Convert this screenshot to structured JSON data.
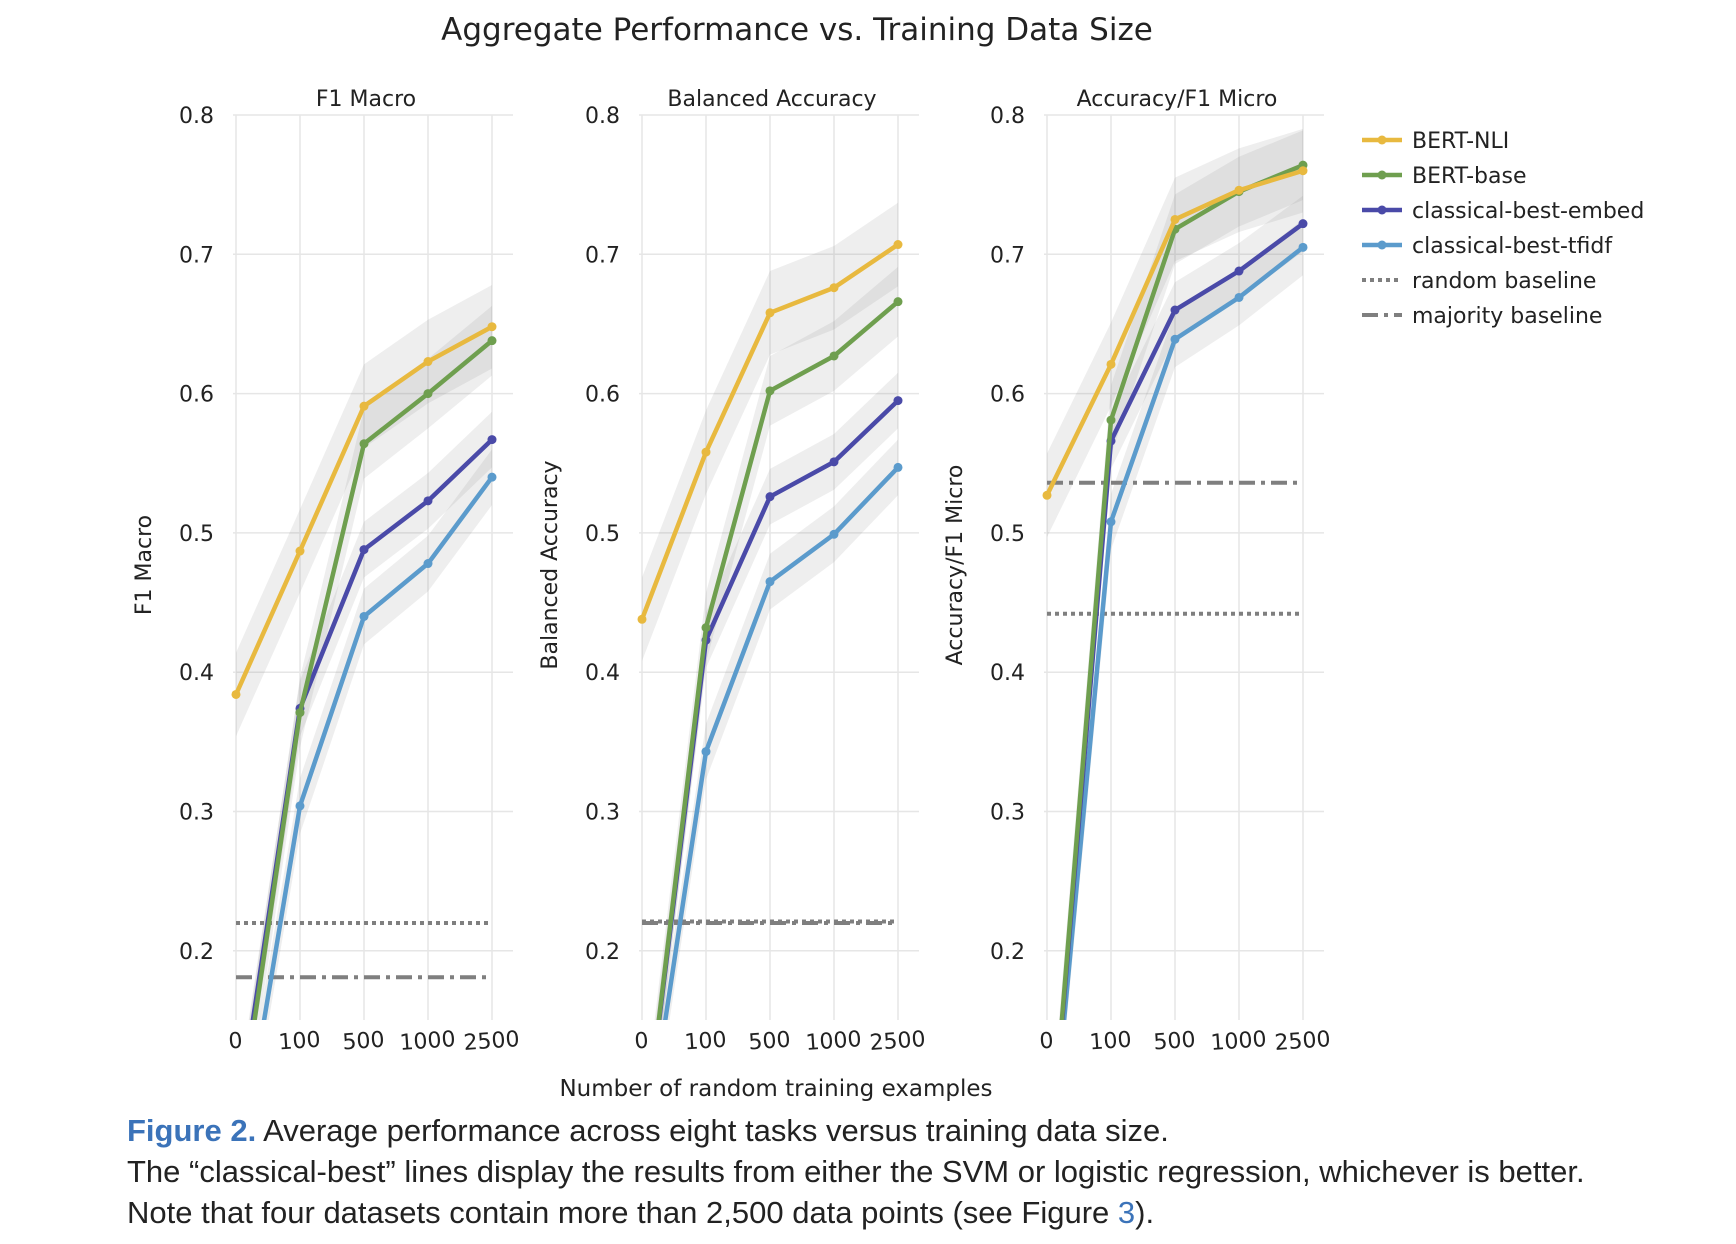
{
  "figure": {
    "title": "Aggregate Performance vs. Training Data Size",
    "xlabel": "Number of random training examples",
    "x_ticks": [
      "0",
      "100",
      "500",
      "1000",
      "2500"
    ]
  },
  "legend": [
    {
      "name": "BERT-NLI",
      "color": "#e8b93f",
      "style": "line-marker"
    },
    {
      "name": "BERT-base",
      "color": "#6f9f4f",
      "style": "line-marker"
    },
    {
      "name": "classical-best-embed",
      "color": "#4a4aa8",
      "style": "line-marker"
    },
    {
      "name": "classical-best-tfidf",
      "color": "#5b9bcc",
      "style": "line-marker"
    },
    {
      "name": "random baseline",
      "color": "#7f7f7f",
      "style": "dotted"
    },
    {
      "name": "majority baseline",
      "color": "#7f7f7f",
      "style": "dashdot"
    }
  ],
  "chart_data": [
    {
      "type": "line",
      "title": "F1 Macro",
      "ylabel": "F1 Macro",
      "categories": [
        "0",
        "100",
        "500",
        "1000",
        "2500"
      ],
      "ylim": [
        0.15,
        0.8
      ],
      "yticks": [
        "0.2",
        "0.3",
        "0.4",
        "0.5",
        "0.6",
        "0.7",
        "0.8"
      ],
      "series": [
        {
          "name": "BERT-NLI",
          "values": [
            0.384,
            0.487,
            0.591,
            0.623,
            0.648
          ],
          "band": 0.03
        },
        {
          "name": "BERT-base",
          "values": [
            0.06,
            0.371,
            0.564,
            0.6,
            0.638
          ],
          "band": 0.025
        },
        {
          "name": "classical-best-embed",
          "values": [
            0.07,
            0.374,
            0.488,
            0.523,
            0.567
          ],
          "band": 0.02
        },
        {
          "name": "classical-best-tfidf",
          "values": [
            0.03,
            0.304,
            0.44,
            0.478,
            0.54
          ],
          "band": 0.02
        }
      ],
      "baselines": {
        "random": 0.22,
        "majority": 0.181
      }
    },
    {
      "type": "line",
      "title": "Balanced Accuracy",
      "ylabel": "Balanced Accuracy",
      "categories": [
        "0",
        "100",
        "500",
        "1000",
        "2500"
      ],
      "ylim": [
        0.15,
        0.8
      ],
      "yticks": [
        "0.2",
        "0.3",
        "0.4",
        "0.5",
        "0.6",
        "0.7",
        "0.8"
      ],
      "series": [
        {
          "name": "BERT-NLI",
          "values": [
            0.438,
            0.558,
            0.658,
            0.676,
            0.707
          ],
          "band": 0.03
        },
        {
          "name": "BERT-base",
          "values": [
            0.05,
            0.432,
            0.602,
            0.627,
            0.666
          ],
          "band": 0.025
        },
        {
          "name": "classical-best-embed",
          "values": [
            0.05,
            0.423,
            0.526,
            0.551,
            0.595
          ],
          "band": 0.02
        },
        {
          "name": "classical-best-tfidf",
          "values": [
            0.04,
            0.343,
            0.465,
            0.499,
            0.547
          ],
          "band": 0.02
        }
      ],
      "baselines": {
        "random": 0.221,
        "majority": 0.22
      }
    },
    {
      "type": "line",
      "title": "Accuracy/F1 Micro",
      "ylabel": "Accuracy/F1 Micro",
      "categories": [
        "0",
        "100",
        "500",
        "1000",
        "2500"
      ],
      "ylim": [
        0.15,
        0.8
      ],
      "yticks": [
        "0.2",
        "0.3",
        "0.4",
        "0.5",
        "0.6",
        "0.7",
        "0.8"
      ],
      "series": [
        {
          "name": "BERT-NLI",
          "values": [
            0.527,
            0.621,
            0.725,
            0.746,
            0.76
          ],
          "band": 0.03
        },
        {
          "name": "BERT-base",
          "values": [
            0.02,
            0.581,
            0.718,
            0.745,
            0.764
          ],
          "band": 0.025
        },
        {
          "name": "classical-best-embed",
          "values": [
            0.02,
            0.566,
            0.66,
            0.688,
            0.722
          ],
          "band": 0.02
        },
        {
          "name": "classical-best-tfidf",
          "values": [
            0.02,
            0.508,
            0.639,
            0.669,
            0.705
          ],
          "band": 0.02
        }
      ],
      "baselines": {
        "random": 0.442,
        "majority": 0.536
      }
    }
  ],
  "caption": {
    "lead": "Figure 2.",
    "line1": "Average performance across eight tasks versus training data size.",
    "line2": "The “classical-best” lines display the results from either the SVM or logistic regression, whichever is better.",
    "line3_before": "Note that four datasets contain more than 2,500 data points (see Figure ",
    "line3_ref": "3",
    "line3_after": ")."
  }
}
